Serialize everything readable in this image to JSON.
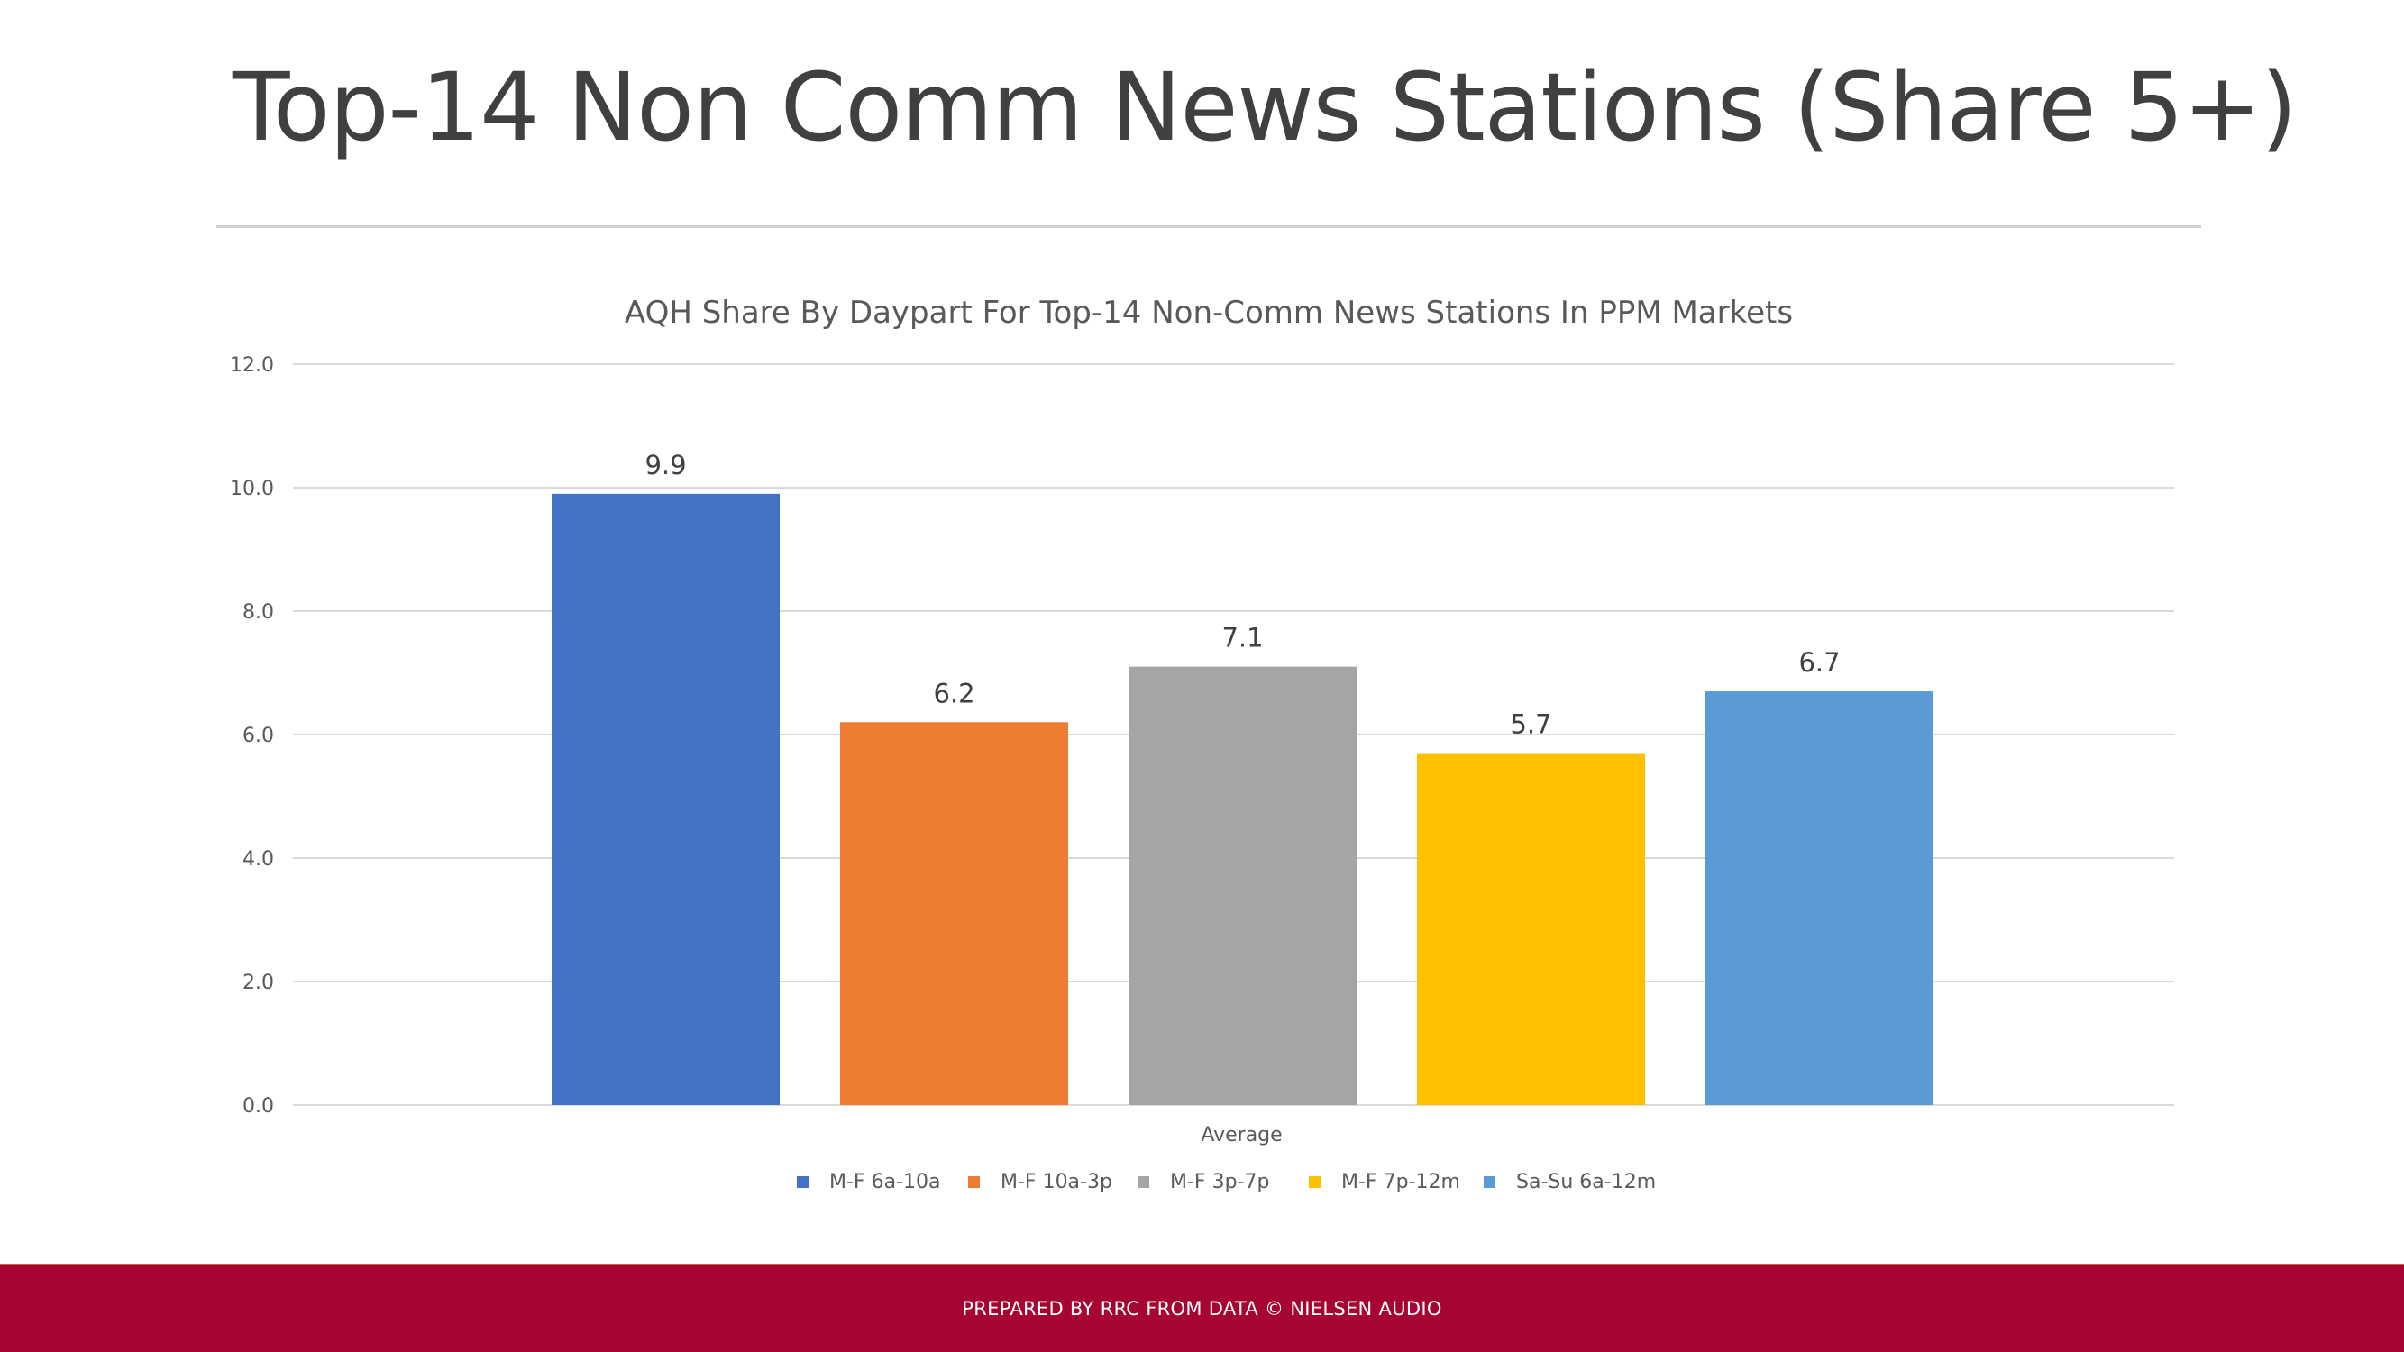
{
  "slide": {
    "title": "Top-14 Non Comm News Stations (Share 5+)",
    "footer": "PREPARED BY RRC FROM DATA © NIELSEN AUDIO"
  },
  "chart_data": {
    "type": "bar",
    "title": "AQH Share By Daypart For Top-14 Non-Comm News Stations In PPM Markets",
    "categories": [
      "Average"
    ],
    "series": [
      {
        "name": "M-F 6a-10a",
        "values": [
          9.9
        ],
        "color": "#4472c4"
      },
      {
        "name": "M-F 10a-3p",
        "values": [
          6.2
        ],
        "color": "#ed7d31"
      },
      {
        "name": "M-F 3p-7p",
        "values": [
          7.1
        ],
        "color": "#a5a5a5"
      },
      {
        "name": "M-F 7p-12m",
        "values": [
          5.7
        ],
        "color": "#ffc000"
      },
      {
        "name": "Sa-Su 6a-12m",
        "values": [
          6.7
        ],
        "color": "#5b9bd5"
      }
    ],
    "ylim": [
      0,
      12
    ],
    "yticks": [
      0,
      2,
      4,
      6,
      8,
      10,
      12
    ],
    "ytick_decimals": 1,
    "xlabel": "",
    "ylabel": "",
    "grid": true,
    "legend": "bottom"
  }
}
